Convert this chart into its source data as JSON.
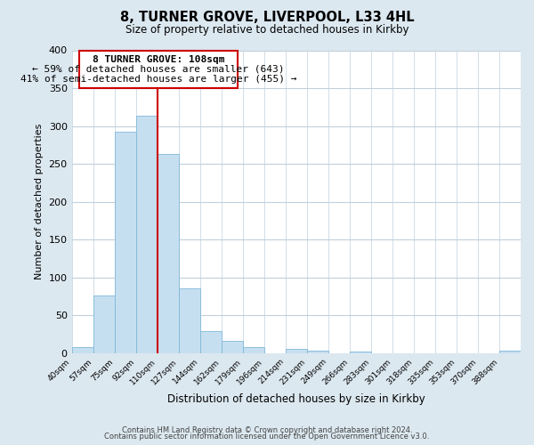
{
  "title": "8, TURNER GROVE, LIVERPOOL, L33 4HL",
  "subtitle": "Size of property relative to detached houses in Kirkby",
  "xlabel": "Distribution of detached houses by size in Kirkby",
  "ylabel": "Number of detached properties",
  "bin_labels": [
    "40sqm",
    "57sqm",
    "75sqm",
    "92sqm",
    "110sqm",
    "127sqm",
    "144sqm",
    "162sqm",
    "179sqm",
    "196sqm",
    "214sqm",
    "231sqm",
    "249sqm",
    "266sqm",
    "283sqm",
    "301sqm",
    "318sqm",
    "335sqm",
    "353sqm",
    "370sqm",
    "388sqm"
  ],
  "bar_values": [
    8,
    76,
    292,
    313,
    263,
    85,
    29,
    16,
    8,
    0,
    5,
    3,
    0,
    2,
    0,
    0,
    0,
    0,
    0,
    0,
    3
  ],
  "bar_color": "#c6dff0",
  "bar_edge_color": "#7fb8d8",
  "vline_x_bar_idx": 4,
  "vline_color": "#cc0000",
  "annotation_title": "8 TURNER GROVE: 108sqm",
  "annotation_line1": "← 59% of detached houses are smaller (643)",
  "annotation_line2": "41% of semi-detached houses are larger (455) →",
  "annotation_box_color": "white",
  "annotation_box_edge": "#cc0000",
  "ylim": [
    0,
    400
  ],
  "yticks": [
    0,
    50,
    100,
    150,
    200,
    250,
    300,
    350,
    400
  ],
  "footnote1": "Contains HM Land Registry data © Crown copyright and database right 2024.",
  "footnote2": "Contains public sector information licensed under the Open Government Licence v3.0.",
  "bg_color": "#dce8f0",
  "plot_bg_color": "#ffffff",
  "grid_color": "#c0d0dc"
}
